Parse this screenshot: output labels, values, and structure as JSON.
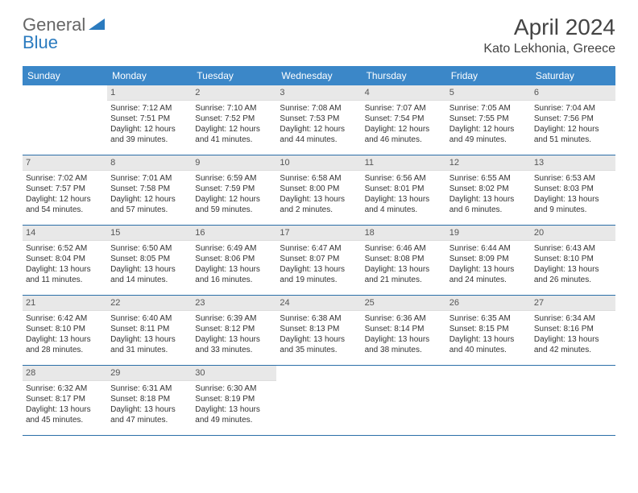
{
  "logo": {
    "text1": "General",
    "text2": "Blue"
  },
  "title": "April 2024",
  "location": "Kato Lekhonia, Greece",
  "day_names": [
    "Sunday",
    "Monday",
    "Tuesday",
    "Wednesday",
    "Thursday",
    "Friday",
    "Saturday"
  ],
  "colors": {
    "header_bg": "#3b87c8",
    "header_text": "#ffffff",
    "daynum_bg": "#e8e8e8",
    "border": "#2b6fa8",
    "logo_blue": "#2b7bbf"
  },
  "weeks": [
    [
      {
        "day": "",
        "sunrise": "",
        "sunset": "",
        "daylight": ""
      },
      {
        "day": "1",
        "sunrise": "Sunrise: 7:12 AM",
        "sunset": "Sunset: 7:51 PM",
        "daylight": "Daylight: 12 hours and 39 minutes."
      },
      {
        "day": "2",
        "sunrise": "Sunrise: 7:10 AM",
        "sunset": "Sunset: 7:52 PM",
        "daylight": "Daylight: 12 hours and 41 minutes."
      },
      {
        "day": "3",
        "sunrise": "Sunrise: 7:08 AM",
        "sunset": "Sunset: 7:53 PM",
        "daylight": "Daylight: 12 hours and 44 minutes."
      },
      {
        "day": "4",
        "sunrise": "Sunrise: 7:07 AM",
        "sunset": "Sunset: 7:54 PM",
        "daylight": "Daylight: 12 hours and 46 minutes."
      },
      {
        "day": "5",
        "sunrise": "Sunrise: 7:05 AM",
        "sunset": "Sunset: 7:55 PM",
        "daylight": "Daylight: 12 hours and 49 minutes."
      },
      {
        "day": "6",
        "sunrise": "Sunrise: 7:04 AM",
        "sunset": "Sunset: 7:56 PM",
        "daylight": "Daylight: 12 hours and 51 minutes."
      }
    ],
    [
      {
        "day": "7",
        "sunrise": "Sunrise: 7:02 AM",
        "sunset": "Sunset: 7:57 PM",
        "daylight": "Daylight: 12 hours and 54 minutes."
      },
      {
        "day": "8",
        "sunrise": "Sunrise: 7:01 AM",
        "sunset": "Sunset: 7:58 PM",
        "daylight": "Daylight: 12 hours and 57 minutes."
      },
      {
        "day": "9",
        "sunrise": "Sunrise: 6:59 AM",
        "sunset": "Sunset: 7:59 PM",
        "daylight": "Daylight: 12 hours and 59 minutes."
      },
      {
        "day": "10",
        "sunrise": "Sunrise: 6:58 AM",
        "sunset": "Sunset: 8:00 PM",
        "daylight": "Daylight: 13 hours and 2 minutes."
      },
      {
        "day": "11",
        "sunrise": "Sunrise: 6:56 AM",
        "sunset": "Sunset: 8:01 PM",
        "daylight": "Daylight: 13 hours and 4 minutes."
      },
      {
        "day": "12",
        "sunrise": "Sunrise: 6:55 AM",
        "sunset": "Sunset: 8:02 PM",
        "daylight": "Daylight: 13 hours and 6 minutes."
      },
      {
        "day": "13",
        "sunrise": "Sunrise: 6:53 AM",
        "sunset": "Sunset: 8:03 PM",
        "daylight": "Daylight: 13 hours and 9 minutes."
      }
    ],
    [
      {
        "day": "14",
        "sunrise": "Sunrise: 6:52 AM",
        "sunset": "Sunset: 8:04 PM",
        "daylight": "Daylight: 13 hours and 11 minutes."
      },
      {
        "day": "15",
        "sunrise": "Sunrise: 6:50 AM",
        "sunset": "Sunset: 8:05 PM",
        "daylight": "Daylight: 13 hours and 14 minutes."
      },
      {
        "day": "16",
        "sunrise": "Sunrise: 6:49 AM",
        "sunset": "Sunset: 8:06 PM",
        "daylight": "Daylight: 13 hours and 16 minutes."
      },
      {
        "day": "17",
        "sunrise": "Sunrise: 6:47 AM",
        "sunset": "Sunset: 8:07 PM",
        "daylight": "Daylight: 13 hours and 19 minutes."
      },
      {
        "day": "18",
        "sunrise": "Sunrise: 6:46 AM",
        "sunset": "Sunset: 8:08 PM",
        "daylight": "Daylight: 13 hours and 21 minutes."
      },
      {
        "day": "19",
        "sunrise": "Sunrise: 6:44 AM",
        "sunset": "Sunset: 8:09 PM",
        "daylight": "Daylight: 13 hours and 24 minutes."
      },
      {
        "day": "20",
        "sunrise": "Sunrise: 6:43 AM",
        "sunset": "Sunset: 8:10 PM",
        "daylight": "Daylight: 13 hours and 26 minutes."
      }
    ],
    [
      {
        "day": "21",
        "sunrise": "Sunrise: 6:42 AM",
        "sunset": "Sunset: 8:10 PM",
        "daylight": "Daylight: 13 hours and 28 minutes."
      },
      {
        "day": "22",
        "sunrise": "Sunrise: 6:40 AM",
        "sunset": "Sunset: 8:11 PM",
        "daylight": "Daylight: 13 hours and 31 minutes."
      },
      {
        "day": "23",
        "sunrise": "Sunrise: 6:39 AM",
        "sunset": "Sunset: 8:12 PM",
        "daylight": "Daylight: 13 hours and 33 minutes."
      },
      {
        "day": "24",
        "sunrise": "Sunrise: 6:38 AM",
        "sunset": "Sunset: 8:13 PM",
        "daylight": "Daylight: 13 hours and 35 minutes."
      },
      {
        "day": "25",
        "sunrise": "Sunrise: 6:36 AM",
        "sunset": "Sunset: 8:14 PM",
        "daylight": "Daylight: 13 hours and 38 minutes."
      },
      {
        "day": "26",
        "sunrise": "Sunrise: 6:35 AM",
        "sunset": "Sunset: 8:15 PM",
        "daylight": "Daylight: 13 hours and 40 minutes."
      },
      {
        "day": "27",
        "sunrise": "Sunrise: 6:34 AM",
        "sunset": "Sunset: 8:16 PM",
        "daylight": "Daylight: 13 hours and 42 minutes."
      }
    ],
    [
      {
        "day": "28",
        "sunrise": "Sunrise: 6:32 AM",
        "sunset": "Sunset: 8:17 PM",
        "daylight": "Daylight: 13 hours and 45 minutes."
      },
      {
        "day": "29",
        "sunrise": "Sunrise: 6:31 AM",
        "sunset": "Sunset: 8:18 PM",
        "daylight": "Daylight: 13 hours and 47 minutes."
      },
      {
        "day": "30",
        "sunrise": "Sunrise: 6:30 AM",
        "sunset": "Sunset: 8:19 PM",
        "daylight": "Daylight: 13 hours and 49 minutes."
      },
      {
        "day": "",
        "sunrise": "",
        "sunset": "",
        "daylight": ""
      },
      {
        "day": "",
        "sunrise": "",
        "sunset": "",
        "daylight": ""
      },
      {
        "day": "",
        "sunrise": "",
        "sunset": "",
        "daylight": ""
      },
      {
        "day": "",
        "sunrise": "",
        "sunset": "",
        "daylight": ""
      }
    ]
  ]
}
